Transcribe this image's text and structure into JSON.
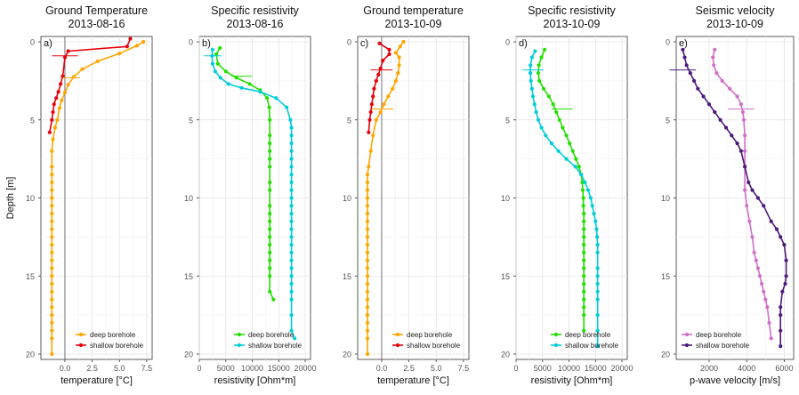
{
  "chart_data": [
    {
      "type": "line",
      "panel_tag": "a)",
      "title_line1": "Ground Temperature",
      "title_line2": "2013-08-16",
      "xlabel": "temperature [°C]",
      "ylabel": "Depth [m]",
      "xlim": [
        -2.2,
        8
      ],
      "ylim": [
        0,
        20
      ],
      "y_reversed": true,
      "xticks": [
        0,
        2.5,
        5,
        7.5
      ],
      "xtick_labels": [
        "0.0",
        "2.5",
        "5.0",
        "7.5"
      ],
      "yticks": [
        0,
        5,
        10,
        15,
        20
      ],
      "ytick_labels": [
        "0",
        "5",
        "10",
        "15",
        "20"
      ],
      "vline": 0,
      "grid": true,
      "legend_position": "bottom-right",
      "series": [
        {
          "name": "deep borehole",
          "color": "#FFA500",
          "x": [
            7.2,
            6.6,
            5.0,
            3.0,
            1.6,
            0.8,
            0.3,
            0.0,
            -0.3,
            -0.5,
            -0.7,
            -0.9,
            -1.1,
            -1.2,
            -1.2,
            -1.2,
            -1.2,
            -1.2,
            -1.2,
            -1.2,
            -1.2,
            -1.2,
            -1.2,
            -1.2,
            -1.2,
            -1.2,
            -1.2,
            -1.2,
            -1.2,
            -1.2,
            -1.2,
            -1.2,
            -1.2,
            -1.2,
            -1.2,
            -1.2,
            -1.2,
            -1.2
          ],
          "y": [
            0,
            0.25,
            0.75,
            1.25,
            1.75,
            2.25,
            2.75,
            3.25,
            3.75,
            4.25,
            5.0,
            5.5,
            6.25,
            7.0,
            8.0,
            8.5,
            9.0,
            9.5,
            10.0,
            10.5,
            11.0,
            11.5,
            12.0,
            12.5,
            13.0,
            13.5,
            14.0,
            14.5,
            15.0,
            15.5,
            16.0,
            16.5,
            17.0,
            17.5,
            18.0,
            18.5,
            19.0,
            20.0
          ]
        },
        {
          "name": "shallow borehole",
          "color": "#E8000B",
          "x": [
            6.0,
            5.7,
            0.3,
            0.0,
            -0.2,
            -0.4,
            -0.6,
            -0.8,
            -1.0,
            -1.1,
            -1.2,
            -1.4
          ],
          "y": [
            -0.2,
            0.3,
            0.6,
            1.0,
            2.2,
            2.7,
            3.2,
            3.6,
            4.0,
            4.5,
            5.0,
            5.8
          ]
        }
      ],
      "error_bars": [
        {
          "x": 0.0,
          "y": 0.9,
          "half_width": 1.2,
          "color": "#E8000B"
        },
        {
          "x": 0.6,
          "y": 2.3,
          "half_width": 0.8,
          "color": "#FFA500"
        }
      ]
    },
    {
      "type": "line",
      "panel_tag": "b)",
      "title_line1": "Specific resistivity",
      "title_line2": "2013-08-16",
      "xlabel": "resistivity [Ohm*m]",
      "ylabel": "",
      "xlim": [
        0,
        21000
      ],
      "ylim": [
        0,
        20
      ],
      "y_reversed": true,
      "xticks": [
        0,
        5000,
        10000,
        15000,
        20000
      ],
      "xtick_labels": [
        "0",
        "5000",
        "10000",
        "15000",
        "20000"
      ],
      "yticks": [
        0,
        5,
        10,
        15,
        20
      ],
      "ytick_labels": [
        "0",
        "5",
        "10",
        "15",
        "20"
      ],
      "grid": true,
      "legend_position": "bottom-right",
      "series": [
        {
          "name": "deep borehole",
          "color": "#22E000",
          "x": [
            3900,
            3200,
            3500,
            5000,
            7000,
            9500,
            11500,
            12800,
            13200,
            13300,
            13300,
            13300,
            13300,
            13300,
            13300,
            13300,
            13300,
            13300,
            13300,
            13300,
            13300,
            13300,
            13300,
            13300,
            13300,
            13300,
            13300,
            13300,
            14000
          ],
          "y": [
            0.4,
            0.8,
            1.4,
            1.9,
            2.3,
            2.7,
            3.1,
            3.6,
            4.2,
            5.0,
            6.0,
            6.5,
            7.0,
            7.5,
            8.0,
            9.0,
            9.5,
            10.5,
            11.0,
            11.5,
            12.0,
            12.5,
            13.0,
            13.5,
            14.0,
            14.5,
            15.0,
            16.0,
            16.5
          ]
        },
        {
          "name": "shallow borehole",
          "color": "#00CDD7",
          "x": [
            2500,
            2400,
            2500,
            3000,
            4000,
            5500,
            8000,
            11500,
            14500,
            16500,
            17200,
            17400,
            17400,
            17400,
            17400,
            17400,
            17400,
            17400,
            17400,
            17400,
            17400,
            17400,
            17400,
            17400,
            17400,
            17400,
            17400,
            17400,
            17400,
            17400,
            17400,
            17400,
            17400,
            17400,
            17400,
            17400,
            18000
          ],
          "y": [
            0.5,
            0.9,
            1.4,
            1.9,
            2.3,
            2.7,
            2.95,
            3.2,
            3.6,
            4.2,
            5.0,
            5.5,
            6.0,
            6.5,
            7.0,
            7.5,
            8.0,
            8.5,
            9.0,
            9.5,
            10.0,
            10.5,
            11.0,
            11.5,
            12.0,
            12.5,
            13.0,
            13.5,
            14.0,
            14.5,
            15.0,
            15.5,
            16.0,
            16.5,
            17.5,
            18.5,
            19.0
          ]
        }
      ],
      "error_bars": [
        {
          "x": 2500,
          "y": 0.9,
          "half_width": 1700,
          "color": "#00CDD7"
        },
        {
          "x": 8000,
          "y": 2.2,
          "half_width": 2000,
          "color": "#22E000"
        }
      ]
    },
    {
      "type": "line",
      "panel_tag": "c)",
      "title_line1": "Ground temperature",
      "title_line2": "2013-10-09",
      "xlabel": "temperature [°C]",
      "ylabel": "",
      "xlim": [
        -2.2,
        8
      ],
      "ylim": [
        0,
        20
      ],
      "y_reversed": true,
      "xticks": [
        0,
        2.5,
        5,
        7.5
      ],
      "xtick_labels": [
        "0.0",
        "2.5",
        "5.0",
        "7.5"
      ],
      "yticks": [
        0,
        5,
        10,
        15,
        20
      ],
      "ytick_labels": [
        "0",
        "5",
        "10",
        "15",
        "20"
      ],
      "vline": 0,
      "grid": true,
      "legend_position": "bottom-right",
      "series": [
        {
          "name": "deep borehole",
          "color": "#FFA500",
          "x": [
            2.0,
            1.7,
            1.3,
            1.6,
            1.6,
            1.5,
            1.3,
            1.0,
            0.6,
            0.2,
            -0.1,
            -0.5,
            -0.8,
            -1.0,
            -1.2,
            -1.3,
            -1.3,
            -1.3,
            -1.3,
            -1.3,
            -1.3,
            -1.3,
            -1.3,
            -1.3,
            -1.3,
            -1.3,
            -1.3,
            -1.3,
            -1.3,
            -1.3,
            -1.3,
            -1.3,
            -1.3,
            -1.3,
            -1.3,
            -1.3,
            -1.3,
            -1.3
          ],
          "y": [
            0,
            0.3,
            0.7,
            1.0,
            1.5,
            2.0,
            2.5,
            3.0,
            3.5,
            4.0,
            4.5,
            5.0,
            6.0,
            7.0,
            8.0,
            8.5,
            9.0,
            9.5,
            10.0,
            10.5,
            11.0,
            11.5,
            12.0,
            12.5,
            13.0,
            13.5,
            14.0,
            14.5,
            15.0,
            15.5,
            16.0,
            16.5,
            17.0,
            17.5,
            18.0,
            18.5,
            19.0,
            20.0
          ]
        },
        {
          "name": "shallow borehole",
          "color": "#E8000B",
          "x": [
            -0.2,
            0.7,
            0.7,
            0.1,
            -0.1,
            -0.3,
            -0.5,
            -0.7,
            -0.8,
            -0.9,
            -1.0,
            -1.1,
            -1.2
          ],
          "y": [
            0.1,
            0.5,
            0.8,
            1.2,
            1.7,
            2.1,
            2.5,
            3.0,
            3.5,
            4.0,
            4.5,
            5.0,
            5.8
          ]
        }
      ],
      "error_bars": [
        {
          "x": 0.0,
          "y": 1.8,
          "half_width": 1.0,
          "color": "#E8000B"
        },
        {
          "x": 0.1,
          "y": 4.3,
          "half_width": 1.0,
          "color": "#FFA500"
        }
      ]
    },
    {
      "type": "line",
      "panel_tag": "d)",
      "title_line1": "Specific resistivity",
      "title_line2": "2013-10-09",
      "xlabel": "resistivity [Ohm*m]",
      "ylabel": "",
      "xlim": [
        0,
        21000
      ],
      "ylim": [
        0,
        20
      ],
      "y_reversed": true,
      "xticks": [
        0,
        5000,
        10000,
        15000,
        20000
      ],
      "xtick_labels": [
        "0",
        "5000",
        "10000",
        "15000",
        "20000"
      ],
      "yticks": [
        0,
        5,
        10,
        15,
        20
      ],
      "ytick_labels": [
        "0",
        "5",
        "10",
        "15",
        "20"
      ],
      "grid": true,
      "legend_position": "bottom-right",
      "series": [
        {
          "name": "deep borehole",
          "color": "#22E000",
          "x": [
            5400,
            4800,
            4300,
            4200,
            4400,
            5200,
            6200,
            7000,
            7600,
            8200,
            8800,
            9500,
            10100,
            10700,
            11300,
            11900,
            12300,
            12500,
            12600,
            12700,
            12700,
            12800,
            12800,
            12800,
            12800,
            12800,
            12800,
            12800,
            12800,
            12800,
            12800,
            12800,
            12800,
            12800,
            12800,
            12800
          ],
          "y": [
            0.5,
            1.0,
            1.5,
            2.0,
            2.5,
            3.0,
            3.5,
            4.0,
            4.5,
            5.0,
            5.5,
            6.0,
            6.5,
            7.0,
            7.5,
            8.0,
            8.5,
            9.0,
            9.5,
            10.0,
            10.5,
            11.0,
            11.5,
            12.0,
            12.5,
            13.0,
            13.5,
            14.0,
            14.5,
            15.0,
            15.5,
            16.0,
            16.5,
            17.0,
            17.5,
            18.5
          ]
        },
        {
          "name": "shallow borehole",
          "color": "#00CDD7",
          "x": [
            3600,
            3000,
            2700,
            2700,
            2800,
            3000,
            3200,
            3500,
            3800,
            4200,
            4800,
            5600,
            6700,
            8000,
            9500,
            11200,
            12300,
            13000,
            13600,
            14100,
            14400,
            14700,
            15000,
            15200,
            15300,
            15400,
            15400,
            15400,
            15400,
            15400,
            15400,
            15400,
            15400,
            15400,
            15400
          ],
          "y": [
            0.6,
            1.0,
            1.5,
            2.0,
            2.5,
            3.0,
            3.5,
            4.0,
            4.5,
            5.0,
            5.5,
            6.0,
            6.5,
            7.0,
            7.5,
            8.0,
            8.5,
            9.0,
            9.5,
            10.0,
            10.5,
            11.0,
            11.5,
            12.0,
            12.5,
            13.0,
            13.5,
            14.5,
            15.0,
            15.5,
            16.0,
            16.5,
            17.5,
            18.5,
            19.5
          ]
        }
      ],
      "error_bars": [
        {
          "x": 3200,
          "y": 1.8,
          "half_width": 2000,
          "color": "#00CDD7"
        },
        {
          "x": 8700,
          "y": 4.3,
          "half_width": 2000,
          "color": "#22E000"
        }
      ]
    },
    {
      "type": "line",
      "panel_tag": "e)",
      "title_line1": "Seismic velocity",
      "title_line2": "2013-10-09",
      "xlabel": "p-wave velocity [m/s]",
      "ylabel": "",
      "xlim": [
        250,
        6500
      ],
      "ylim": [
        0,
        20
      ],
      "y_reversed": true,
      "xticks": [
        2000,
        4000,
        6000
      ],
      "xtick_labels": [
        "2000",
        "4000",
        "6000"
      ],
      "yticks": [
        0,
        5,
        10,
        15,
        20
      ],
      "ytick_labels": [
        "0",
        "5",
        "10",
        "15",
        "20"
      ],
      "grid": true,
      "legend_position": "bottom-left",
      "series": [
        {
          "name": "deep borehole",
          "color": "#D070C8",
          "x": [
            2300,
            2200,
            2250,
            2400,
            2700,
            3100,
            3500,
            3700,
            3800,
            3850,
            3900,
            3900,
            3900,
            3900,
            4000,
            4150,
            4300,
            4400,
            4500,
            4600,
            4700,
            4800,
            4900,
            5000,
            5100,
            5200,
            5300
          ],
          "y": [
            0.5,
            1.0,
            1.5,
            2.0,
            2.5,
            3.0,
            3.5,
            4.0,
            4.5,
            5.0,
            6.0,
            7.0,
            8.0,
            9.5,
            10.5,
            11.5,
            12.5,
            13.5,
            14.0,
            14.5,
            15.0,
            15.5,
            16.0,
            16.5,
            17.0,
            18.0,
            19.0
          ]
        },
        {
          "name": "shallow borehole",
          "color": "#4B1A7A",
          "x": [
            600,
            700,
            800,
            1000,
            1200,
            1400,
            1700,
            2000,
            2300,
            2600,
            2900,
            3200,
            3500,
            3700,
            3900,
            4100,
            4300,
            4600,
            4900,
            5300,
            5600,
            5800,
            6000,
            6100,
            6100,
            6050,
            5900,
            5800,
            5800,
            5800,
            5800
          ],
          "y": [
            0.5,
            1.0,
            1.5,
            2.0,
            2.5,
            3.0,
            3.5,
            4.0,
            4.5,
            5.0,
            5.5,
            6.0,
            6.5,
            7.0,
            8.0,
            9.0,
            9.5,
            10.0,
            10.5,
            11.5,
            12.0,
            12.5,
            13.0,
            14.0,
            15.0,
            15.5,
            16.0,
            17.0,
            17.5,
            18.5,
            19.5
          ]
        }
      ],
      "error_bars": [
        {
          "x": 600,
          "y": 1.8,
          "half_width": 700,
          "color": "#4B1A7A"
        },
        {
          "x": 3700,
          "y": 4.3,
          "half_width": 700,
          "color": "#D070C8"
        }
      ]
    }
  ]
}
